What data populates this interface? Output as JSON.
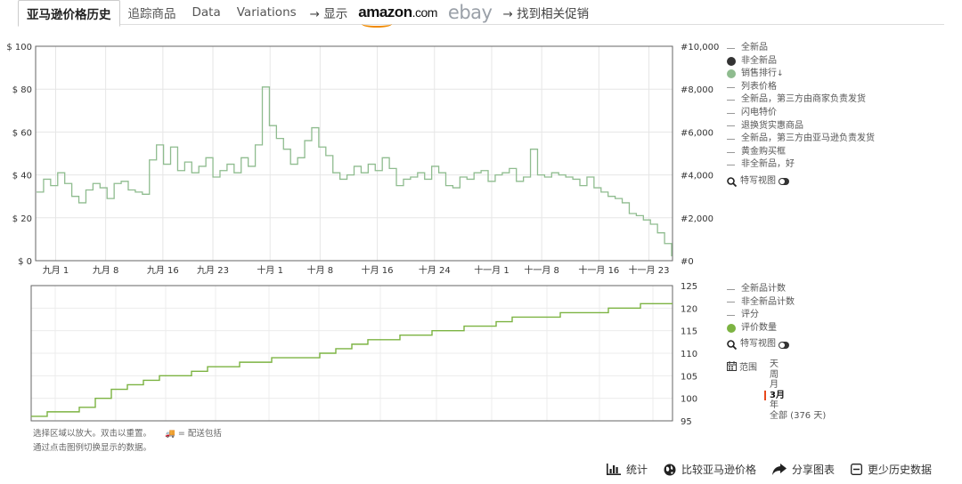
{
  "tabs": [
    {
      "label": "亚马逊价格历史",
      "active": true
    },
    {
      "label": "追踪商品"
    },
    {
      "label": "Data"
    },
    {
      "label": "Variations"
    }
  ],
  "tabs_extra": {
    "arrow_show": "→ 显示",
    "amazon_word": "amazon",
    "amazon_com": ".com",
    "ebay": "ebay",
    "arrow_find": "→ 找到相关促销"
  },
  "price_chart": {
    "left_axis_ticks": [
      "$ 100",
      "$ 80",
      "$ 60",
      "$ 40",
      "$ 20",
      "$ 0"
    ],
    "right_axis_ticks": [
      "#10,000",
      "#8,000",
      "#6,000",
      "#4,000",
      "#2,000",
      "#0"
    ],
    "x_ticks": [
      "九月 1",
      "九月 8",
      "九月 16",
      "九月 23",
      "十月 1",
      "十月 8",
      "十月 16",
      "十月 24",
      "十一月 1",
      "十一月 8",
      "十一月 16",
      "十一月 23"
    ]
  },
  "count_chart": {
    "right_axis_ticks": [
      "125",
      "120",
      "115",
      "110",
      "105",
      "100",
      "95"
    ]
  },
  "legend_top": [
    {
      "label": "全新品",
      "marker": "dash"
    },
    {
      "label": "非全新品",
      "marker": "dot",
      "color": "#333333"
    },
    {
      "label": "销售排行",
      "marker": "dot",
      "color": "#8fbc8f",
      "icon": "sort-icon"
    },
    {
      "label": "列表价格",
      "marker": "dash"
    },
    {
      "label": "全新品，第三方由商家负责发货",
      "marker": "dash"
    },
    {
      "label": "闪电特价",
      "marker": "dash"
    },
    {
      "label": "退换货实惠商品",
      "marker": "dash"
    },
    {
      "label": "全新品，第三方由亚马逊负责发货",
      "marker": "dash"
    },
    {
      "label": "黄金购买框",
      "marker": "dash"
    },
    {
      "label": "非全新品，好",
      "marker": "dash"
    }
  ],
  "closeup_label": "特写视图",
  "legend_bottom": [
    {
      "label": "全新品计数",
      "marker": "dash"
    },
    {
      "label": "非全新品计数",
      "marker": "dash"
    },
    {
      "label": "评分",
      "marker": "dash"
    },
    {
      "label": "评价数量",
      "marker": "dot",
      "color": "#7cb342"
    }
  ],
  "range": {
    "label": "范围",
    "options": [
      "天",
      "周",
      "月",
      "3月",
      "年",
      "全部 (376 天)"
    ],
    "selected": "3月"
  },
  "notes": {
    "line1": "选择区域以放大。双击以重置。",
    "shipping": "= 配送包括",
    "line2": "通过点击图例切换显示的数据。"
  },
  "footer": {
    "stats": "统计",
    "compare": "比较亚马逊价格",
    "share": "分享图表",
    "less": "更少历史数据"
  },
  "colors": {
    "sales_rank": "#8fbc8f",
    "review_count": "#7cb342",
    "range_marker": "#e8491d"
  },
  "chart_data": [
    {
      "type": "line",
      "series": [
        {
          "name": "销售排行",
          "x_range": [
            "九月 1",
            "十一月 23"
          ],
          "values": [
            3200,
            3800,
            3500,
            4100,
            3600,
            3000,
            2700,
            3300,
            3600,
            3400,
            2900,
            3600,
            3700,
            3300,
            3200,
            3100,
            4700,
            5400,
            4500,
            5300,
            4200,
            4600,
            4100,
            4400,
            4800,
            3900,
            4200,
            4500,
            4100,
            4800,
            4400,
            5400,
            8100,
            6300,
            5700,
            5200,
            4500,
            4800,
            5600,
            6200,
            5300,
            4900,
            4100,
            3800,
            4000,
            4400,
            4100,
            4500,
            4200,
            4800,
            4300,
            3500,
            3800,
            3900,
            4100,
            3800,
            4400,
            4100,
            3500,
            3400,
            3900,
            3800,
            4100,
            4200,
            3700,
            4000,
            4100,
            4300,
            3700,
            3900,
            5200,
            4000,
            3900,
            4100,
            4000,
            3900,
            3800,
            3500,
            3900,
            3400,
            3200,
            3000,
            2900,
            2700,
            2200,
            2100,
            1900,
            1700,
            1300,
            800,
            200
          ]
        }
      ],
      "ylim_left": [
        0,
        100
      ],
      "ylim_right": [
        0,
        10000
      ],
      "grid": true
    },
    {
      "type": "line",
      "series": [
        {
          "name": "评价数量",
          "values": [
            96,
            97,
            97,
            98,
            100,
            102,
            103,
            104,
            105,
            105,
            106,
            107,
            107,
            108,
            108,
            109,
            109,
            109,
            110,
            111,
            112,
            113,
            113,
            114,
            114,
            115,
            115,
            116,
            116,
            117,
            118,
            118,
            118,
            119,
            119,
            119,
            120,
            120,
            121,
            121,
            121
          ]
        }
      ],
      "ylim": [
        95,
        125
      ],
      "grid": true
    }
  ]
}
